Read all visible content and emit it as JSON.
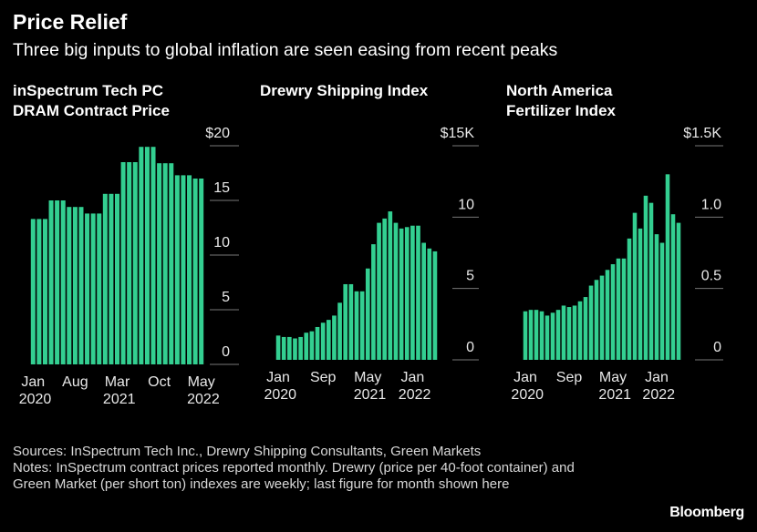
{
  "header": {
    "title": "Price Relief",
    "subtitle": "Three big inputs to global inflation are seen easing from recent peaks"
  },
  "chart_data": [
    {
      "type": "bar",
      "title": [
        "inSpectrum Tech PC",
        "DRAM Contract Price"
      ],
      "color": "#33cf91",
      "categories": [
        "Jan 2020",
        null,
        null,
        null,
        null,
        null,
        null,
        "Aug",
        null,
        null,
        null,
        null,
        null,
        null,
        "Mar 2021",
        null,
        null,
        null,
        null,
        null,
        null,
        "Oct",
        null,
        null,
        null,
        null,
        null,
        null,
        "May 2022"
      ],
      "values": [
        13.3,
        13.3,
        13.3,
        15.0,
        15.0,
        15.0,
        14.4,
        14.4,
        14.4,
        13.8,
        13.8,
        13.8,
        15.6,
        15.6,
        15.6,
        18.5,
        18.5,
        18.5,
        19.9,
        19.9,
        19.9,
        18.4,
        18.4,
        18.4,
        17.3,
        17.3,
        17.3,
        17.0,
        17.0
      ],
      "ylim": [
        0,
        20
      ],
      "yticks": [
        0,
        5,
        10,
        15,
        {
          "value": 20,
          "label": "$20"
        }
      ]
    },
    {
      "type": "bar",
      "title": [
        "Drewry Shipping Index"
      ],
      "color": "#33cf91",
      "categories": [
        "Jan 2020",
        null,
        null,
        null,
        null,
        null,
        null,
        null,
        "Sep",
        null,
        null,
        null,
        null,
        null,
        null,
        null,
        "May 2021",
        null,
        null,
        null,
        null,
        null,
        null,
        null,
        "Jan 2022",
        null,
        null,
        null,
        null
      ],
      "values": [
        1.7,
        1.6,
        1.6,
        1.5,
        1.6,
        1.9,
        2.0,
        2.3,
        2.6,
        2.8,
        3.1,
        4.0,
        5.3,
        5.3,
        4.8,
        4.8,
        6.4,
        8.1,
        9.6,
        9.9,
        10.4,
        9.6,
        9.2,
        9.3,
        9.4,
        9.4,
        8.2,
        7.8,
        7.6
      ],
      "ylim": [
        0,
        15
      ],
      "yticks": [
        0,
        5,
        10,
        {
          "value": 15,
          "label": "$15K"
        }
      ]
    },
    {
      "type": "bar",
      "title": [
        "North America",
        "Fertilizer Index"
      ],
      "color": "#33cf91",
      "categories": [
        "Jan 2020",
        null,
        null,
        null,
        null,
        null,
        null,
        null,
        "Sep",
        null,
        null,
        null,
        null,
        null,
        null,
        null,
        "May 2021",
        null,
        null,
        null,
        null,
        null,
        null,
        null,
        "Jan 2022",
        null,
        null,
        null,
        null
      ],
      "values": [
        0.34,
        0.35,
        0.35,
        0.34,
        0.31,
        0.33,
        0.35,
        0.38,
        0.37,
        0.38,
        0.41,
        0.44,
        0.52,
        0.56,
        0.59,
        0.63,
        0.67,
        0.71,
        0.71,
        0.85,
        1.03,
        0.92,
        1.15,
        1.1,
        0.88,
        0.82,
        1.3,
        1.02,
        0.96
      ],
      "ylim": [
        0,
        1.5
      ],
      "yticks": [
        0,
        0.5,
        {
          "value": 1,
          "label": "1.0"
        },
        {
          "value": 1.5,
          "label": "$1.5K"
        }
      ]
    }
  ],
  "footer": {
    "sources": "Sources: InSpectrum Tech Inc., Drewry Shipping Consultants, Green Markets",
    "notes": "Notes: InSpectrum contract prices reported monthly. Drewry (price per 40-foot container) and Green Market (per short ton) indexes are weekly; last figure for month shown here",
    "brand": "Bloomberg"
  }
}
